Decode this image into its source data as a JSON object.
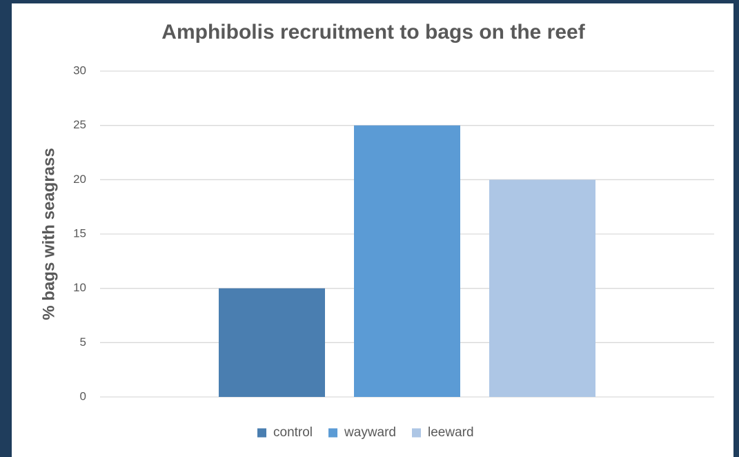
{
  "chart_data": {
    "type": "bar",
    "title": "Amphibolis recruitment to bags on the reef",
    "y_label": "% bags with seagrass",
    "categories": [
      null
    ],
    "series": [
      {
        "name": "control",
        "color": "#4a7eb0",
        "values": [
          10
        ]
      },
      {
        "name": "wayward",
        "color": "#5b9bd5",
        "values": [
          25
        ]
      },
      {
        "name": "leeward",
        "color": "#adc6e5",
        "values": [
          20
        ]
      }
    ],
    "ylim": [
      0,
      30
    ],
    "yticks": [
      0,
      5,
      10,
      15,
      20,
      25,
      30
    ],
    "grid": true,
    "legend": "bottom"
  }
}
